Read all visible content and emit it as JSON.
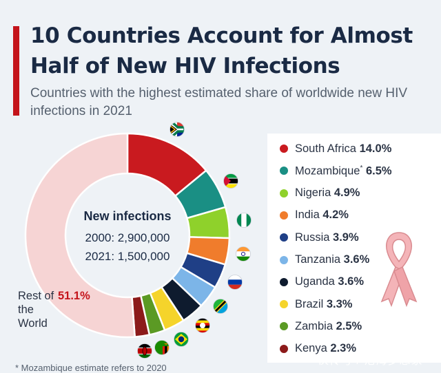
{
  "title": "10 Countries Account for Almost Half of New HIV Infections",
  "subtitle": "Countries with the highest estimated share of worldwide new HIV infections in 2021",
  "center": {
    "title": "New infections",
    "line_2000": "2000: 2,900,000",
    "line_2021": "2021: 1,500,000"
  },
  "rest_label": "Rest of the World",
  "rest_value": "51.1%",
  "footnote": "* Mozambique estimate refers to 2020",
  "watermark": "伙传号 / 沧海梦想家",
  "chart_data": {
    "type": "pie",
    "title": "10 Countries Account for Almost Half of New HIV Infections",
    "subtitle": "Countries with the highest estimated share of worldwide new HIV infections in 2021",
    "unit": "%",
    "legend_position": "right",
    "slices": [
      {
        "name": "South Africa",
        "value": 14.0,
        "label": "14.0%",
        "color": "#c91a1f",
        "flag": "south-africa"
      },
      {
        "name": "Mozambique",
        "value": 6.5,
        "label": "6.5%",
        "color": "#1a8f84",
        "flag": "mozambique",
        "note": "*"
      },
      {
        "name": "Nigeria",
        "value": 4.9,
        "label": "4.9%",
        "color": "#8fd12b",
        "flag": "nigeria"
      },
      {
        "name": "India",
        "value": 4.2,
        "label": "4.2%",
        "color": "#f07c2c",
        "flag": "india"
      },
      {
        "name": "Russia",
        "value": 3.9,
        "label": "3.9%",
        "color": "#1f3f86",
        "flag": "russia"
      },
      {
        "name": "Tanzania",
        "value": 3.6,
        "label": "3.6%",
        "color": "#7cb5e8",
        "flag": "tanzania"
      },
      {
        "name": "Uganda",
        "value": 3.6,
        "label": "3.6%",
        "color": "#0e1b2e",
        "flag": "uganda"
      },
      {
        "name": "Brazil",
        "value": 3.3,
        "label": "3.3%",
        "color": "#f5d42b",
        "flag": "brazil"
      },
      {
        "name": "Zambia",
        "value": 2.5,
        "label": "2.5%",
        "color": "#5b9a24",
        "flag": "zambia"
      },
      {
        "name": "Kenya",
        "value": 2.3,
        "label": "2.3%",
        "color": "#8c1a1a",
        "flag": "kenya"
      },
      {
        "name": "Rest of the World",
        "value": 51.1,
        "label": "51.1%",
        "color": "#f6d4d4"
      }
    ]
  }
}
